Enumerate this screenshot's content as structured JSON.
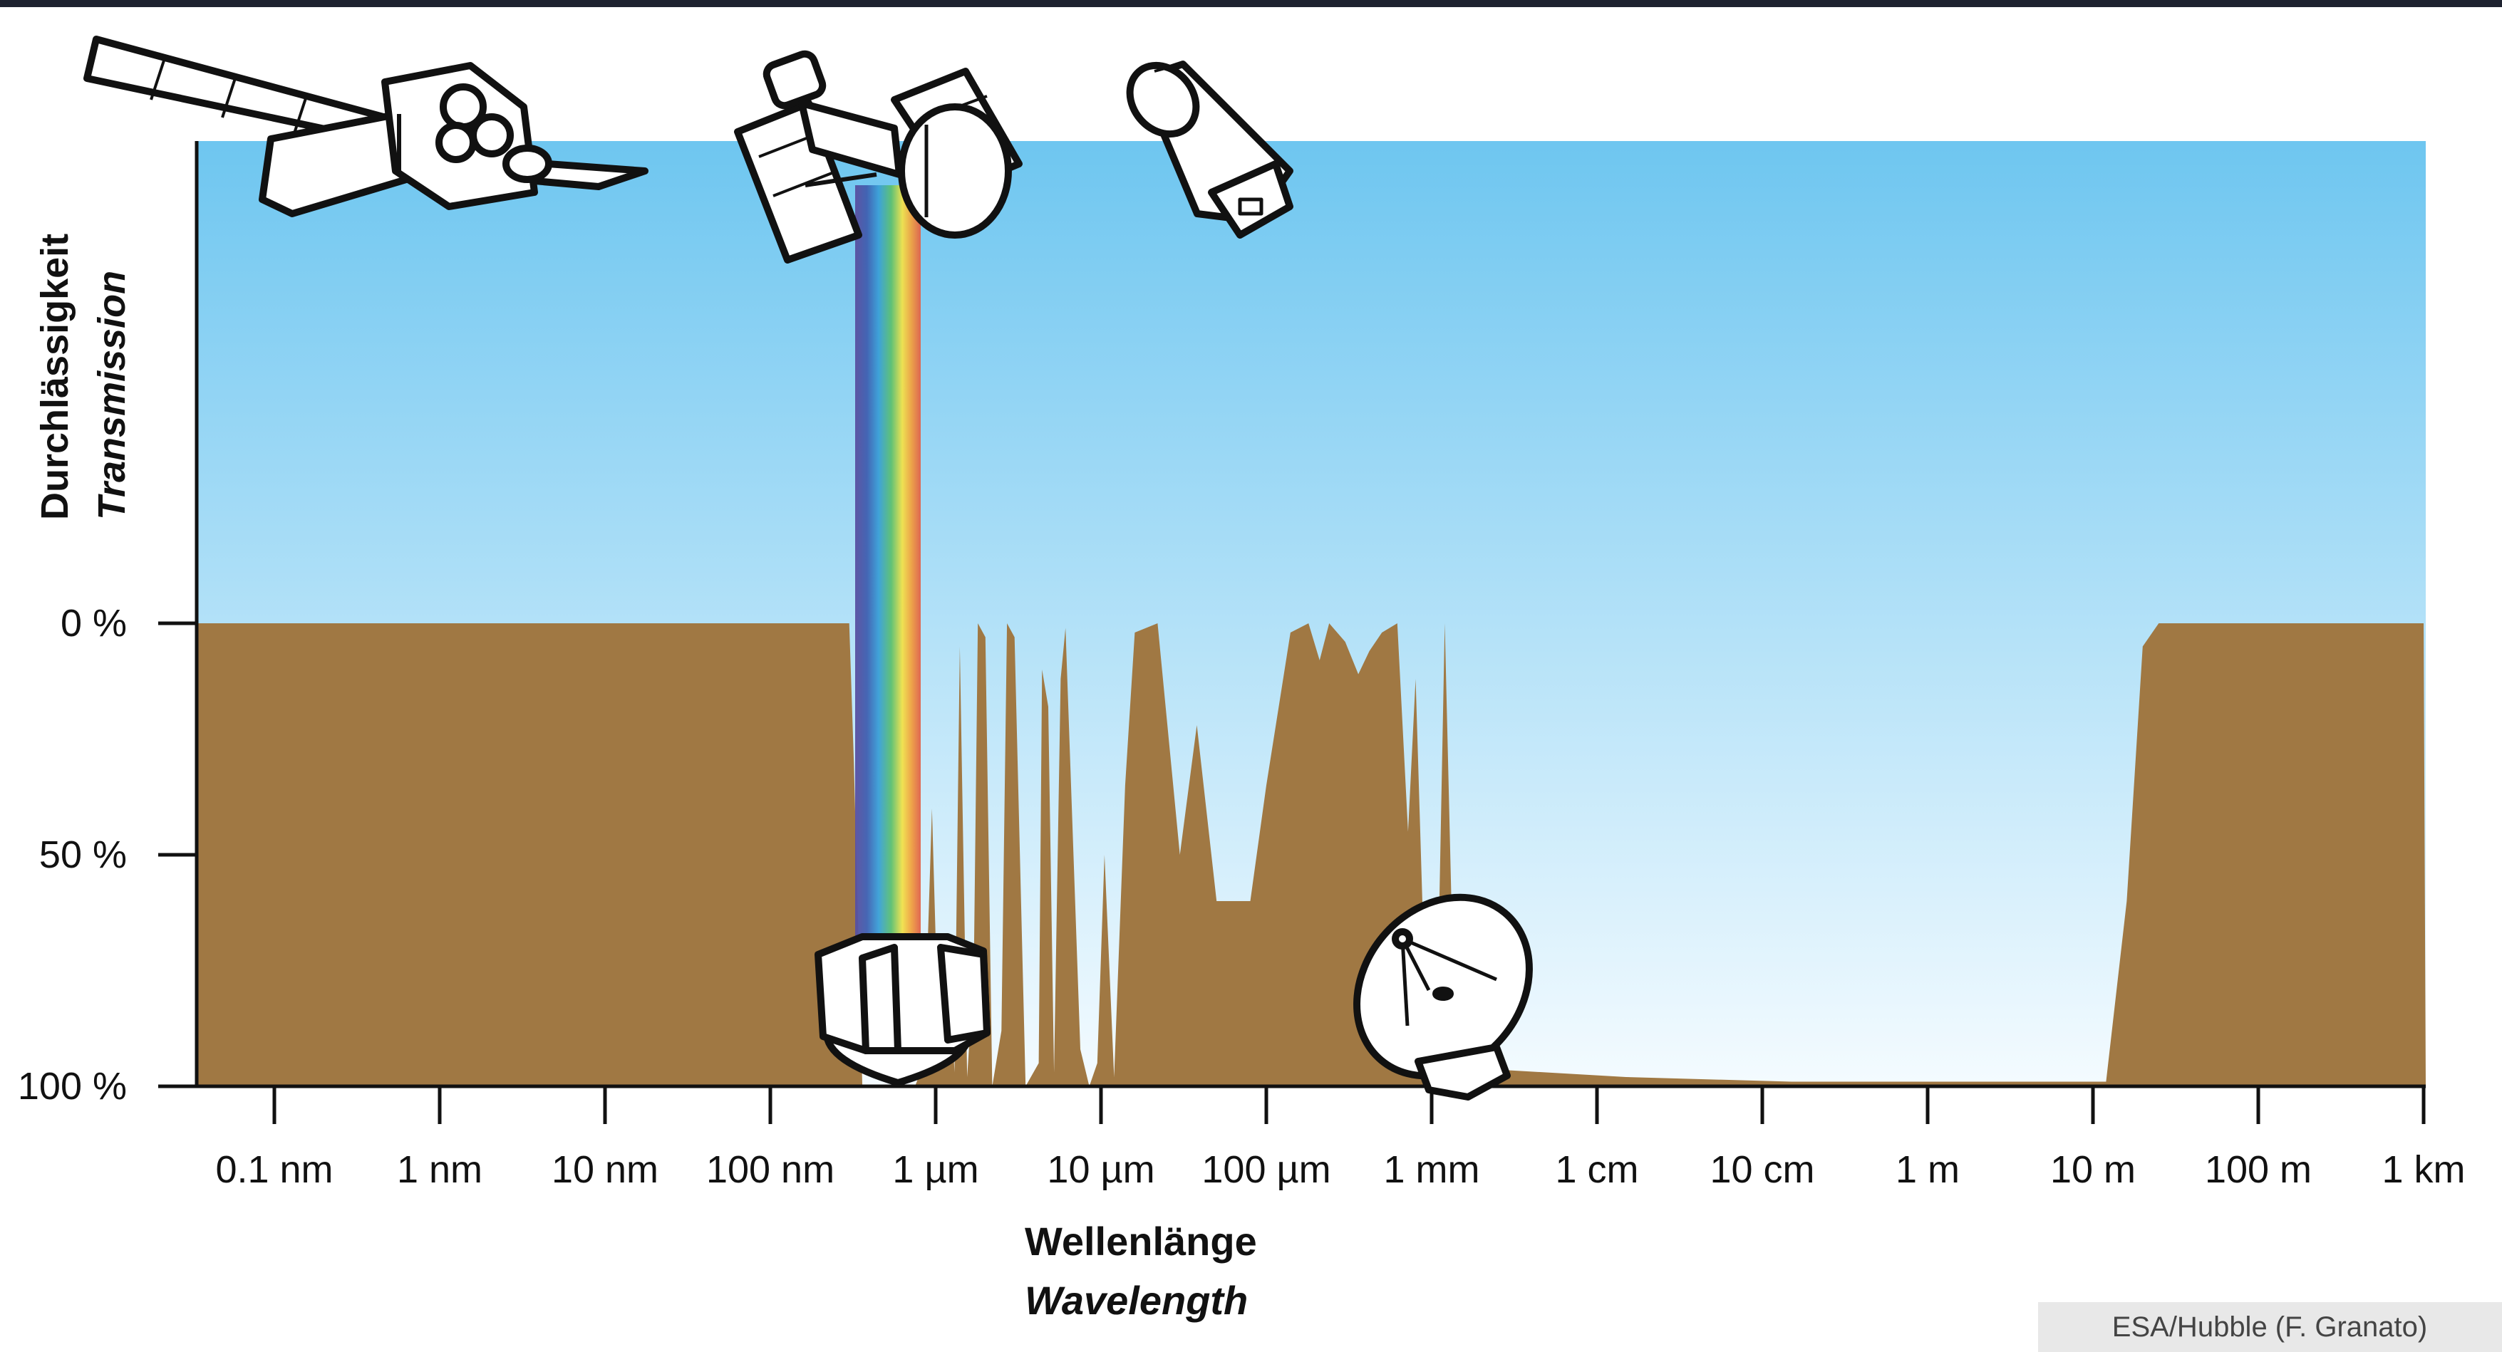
{
  "chart_data": {
    "type": "area",
    "title": "",
    "ylabel": "Durchlässigkeit",
    "ylabel_italic": "Transmission",
    "xlabel": "Wellenlänge",
    "xlabel_italic": "Wavelength",
    "y_tick_labels": [
      "0 %",
      "50 %",
      "100 %"
    ],
    "y_ticks": [
      0,
      50,
      100
    ],
    "ylim": [
      0,
      100
    ],
    "x_tick_labels": [
      "0.1 nm",
      "1 nm",
      "10 nm",
      "100 nm",
      "1 µm",
      "10 µm",
      "100 µm",
      "1 mm",
      "1 cm",
      "10 cm",
      "1 m",
      "10 m",
      "100 m",
      "1 km"
    ],
    "x_scale": "log",
    "x_unit": "m",
    "xlim": [
      1e-10,
      1000
    ],
    "series": [
      {
        "opacity_points": [
          [
            5e-11,
            0
          ],
          [
            3e-07,
            0
          ],
          [
            3.2e-07,
            30
          ],
          [
            3.6e-07,
            100
          ],
          [
            7.5e-07,
            100
          ],
          [
            8.5e-07,
            95
          ],
          [
            9.5e-07,
            40
          ],
          [
            1.05e-06,
            95
          ],
          [
            1.2e-06,
            70
          ],
          [
            1.3e-06,
            97
          ],
          [
            1.4e-06,
            5
          ],
          [
            1.55e-06,
            98
          ],
          [
            1.7e-06,
            75
          ],
          [
            1.8e-06,
            0
          ],
          [
            2e-06,
            3
          ],
          [
            2.2e-06,
            100
          ],
          [
            2.5e-06,
            88
          ],
          [
            2.7e-06,
            0
          ],
          [
            3e-06,
            3
          ],
          [
            3.5e-06,
            100
          ],
          [
            4.2e-06,
            95
          ],
          [
            4.4e-06,
            10
          ],
          [
            4.8e-06,
            18
          ],
          [
            5.2e-06,
            97
          ],
          [
            5.7e-06,
            12
          ],
          [
            6.1e-06,
            1
          ],
          [
            7.5e-06,
            92
          ],
          [
            8.5e-06,
            100
          ],
          [
            9.5e-06,
            95
          ],
          [
            1.05e-05,
            50
          ],
          [
            1.2e-05,
            98
          ],
          [
            1.4e-05,
            35
          ],
          [
            1.6e-05,
            2
          ],
          [
            2.2e-05,
            0
          ],
          [
            3e-05,
            50
          ],
          [
            3.8e-05,
            22
          ],
          [
            5e-05,
            60
          ],
          [
            8e-05,
            60
          ],
          [
            0.0001,
            35
          ],
          [
            0.00014,
            2
          ],
          [
            0.00018,
            0
          ],
          [
            0.00021,
            8
          ],
          [
            0.00024,
            0
          ],
          [
            0.0003,
            4
          ],
          [
            0.00036,
            11
          ],
          [
            0.00042,
            6
          ],
          [
            0.0005,
            2
          ],
          [
            0.00062,
            0
          ],
          [
            0.00072,
            45
          ],
          [
            0.0008,
            12
          ],
          [
            0.00095,
            100
          ],
          [
            0.0011,
            70
          ],
          [
            0.0012,
            0
          ],
          [
            0.0014,
            100
          ],
          [
            0.0016,
            100
          ],
          [
            0.0016,
            96
          ],
          [
            0.015,
            98
          ],
          [
            0.15,
            99
          ],
          [
            12,
            99
          ],
          [
            16,
            60
          ],
          [
            20,
            5
          ],
          [
            25,
            0
          ],
          [
            1000,
            0
          ]
        ]
      }
    ],
    "spectrum_colors": [
      "#5a4fa0",
      "#3f5fb0",
      "#3aa0d8",
      "#5cc070",
      "#f2e24a",
      "#f0a040",
      "#e0604a"
    ],
    "colors": {
      "sky_top": "#6ec6f0",
      "sky_bottom": "#f4fbff",
      "ground": "#a07843"
    }
  },
  "credit": "ESA/Hubble (F. Granato)"
}
